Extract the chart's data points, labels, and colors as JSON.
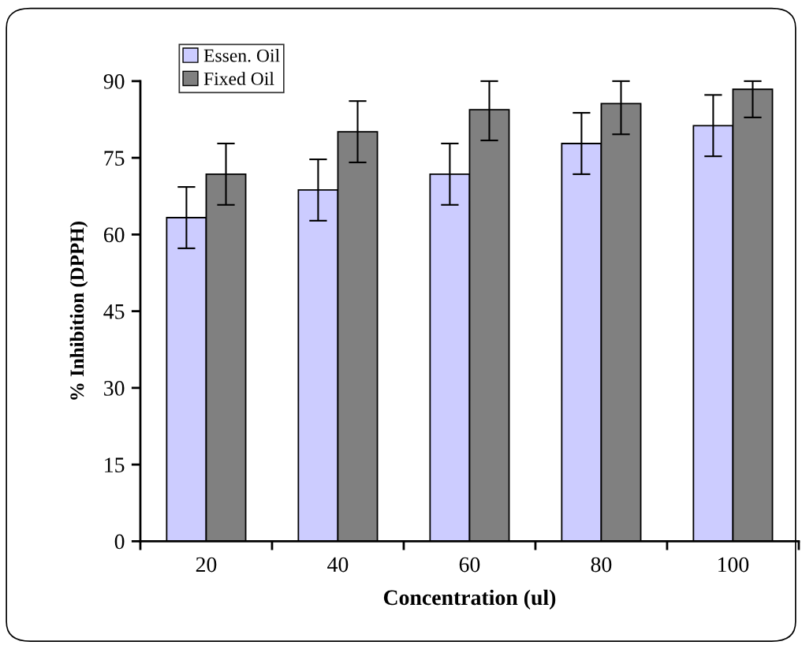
{
  "chart_data": {
    "type": "bar",
    "xlabel": "Concentration (ul)",
    "ylabel": "% Inhibition (DPPH)",
    "categories": [
      "20",
      "40",
      "60",
      "80",
      "100"
    ],
    "series": [
      {
        "name": "Essen. Oil",
        "color": "#ccccff",
        "values": [
          63.3,
          68.7,
          71.8,
          77.8,
          81.3
        ],
        "errors": [
          6,
          6,
          6,
          6,
          6
        ]
      },
      {
        "name": "Fixed Oil",
        "color": "#808080",
        "values": [
          71.8,
          80.1,
          84.4,
          85.6,
          88.4
        ],
        "errors": [
          6,
          6,
          [
            78.4,
            90
          ],
          [
            79.6,
            90
          ],
          [
            82.9,
            90
          ]
        ]
      }
    ],
    "ylim": [
      0,
      90
    ],
    "yticks": [
      0,
      15,
      30,
      45,
      60,
      75,
      90
    ],
    "grid": false,
    "legend": "top left"
  }
}
